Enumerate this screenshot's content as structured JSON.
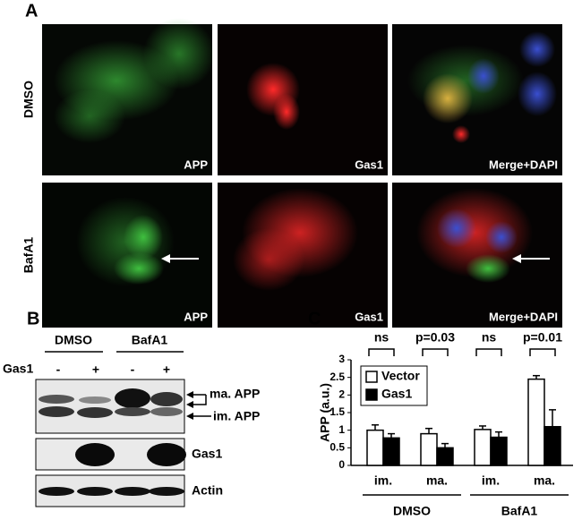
{
  "panel_a": {
    "label": "A",
    "rows": [
      {
        "label": "DMSO",
        "images": [
          "APP",
          "Gas1",
          "Merge+DAPI"
        ]
      },
      {
        "label": "BafA1",
        "images": [
          "APP",
          "Gas1",
          "Merge+DAPI"
        ]
      }
    ]
  },
  "panel_b": {
    "label": "B",
    "treatments": [
      "DMSO",
      "BafA1"
    ],
    "row_label": "Gas1",
    "lanes": [
      "-",
      "+",
      "-",
      "+"
    ],
    "bands": [
      "ma. APP",
      "im. APP",
      "Gas1",
      "Actin"
    ]
  },
  "chart_data": {
    "type": "bar",
    "label": "C",
    "ylabel": "APP (a.u.)",
    "categories": [
      "im.",
      "ma.",
      "im.",
      "ma."
    ],
    "groups": [
      "DMSO",
      "BafA1"
    ],
    "significance": [
      "ns",
      "p=0.03",
      "ns",
      "p=0.01"
    ],
    "ylim": [
      0,
      3
    ],
    "yticks": [
      0,
      0.5,
      1,
      1.5,
      2,
      2.5,
      3
    ],
    "series": [
      {
        "name": "Vector",
        "color": "#ffffff",
        "values": [
          1.0,
          0.9,
          1.02,
          2.45
        ],
        "errors": [
          0.15,
          0.15,
          0.1,
          0.1
        ]
      },
      {
        "name": "Gas1",
        "color": "#000000",
        "values": [
          0.78,
          0.5,
          0.8,
          1.1
        ],
        "errors": [
          0.12,
          0.12,
          0.15,
          0.48
        ]
      }
    ]
  }
}
